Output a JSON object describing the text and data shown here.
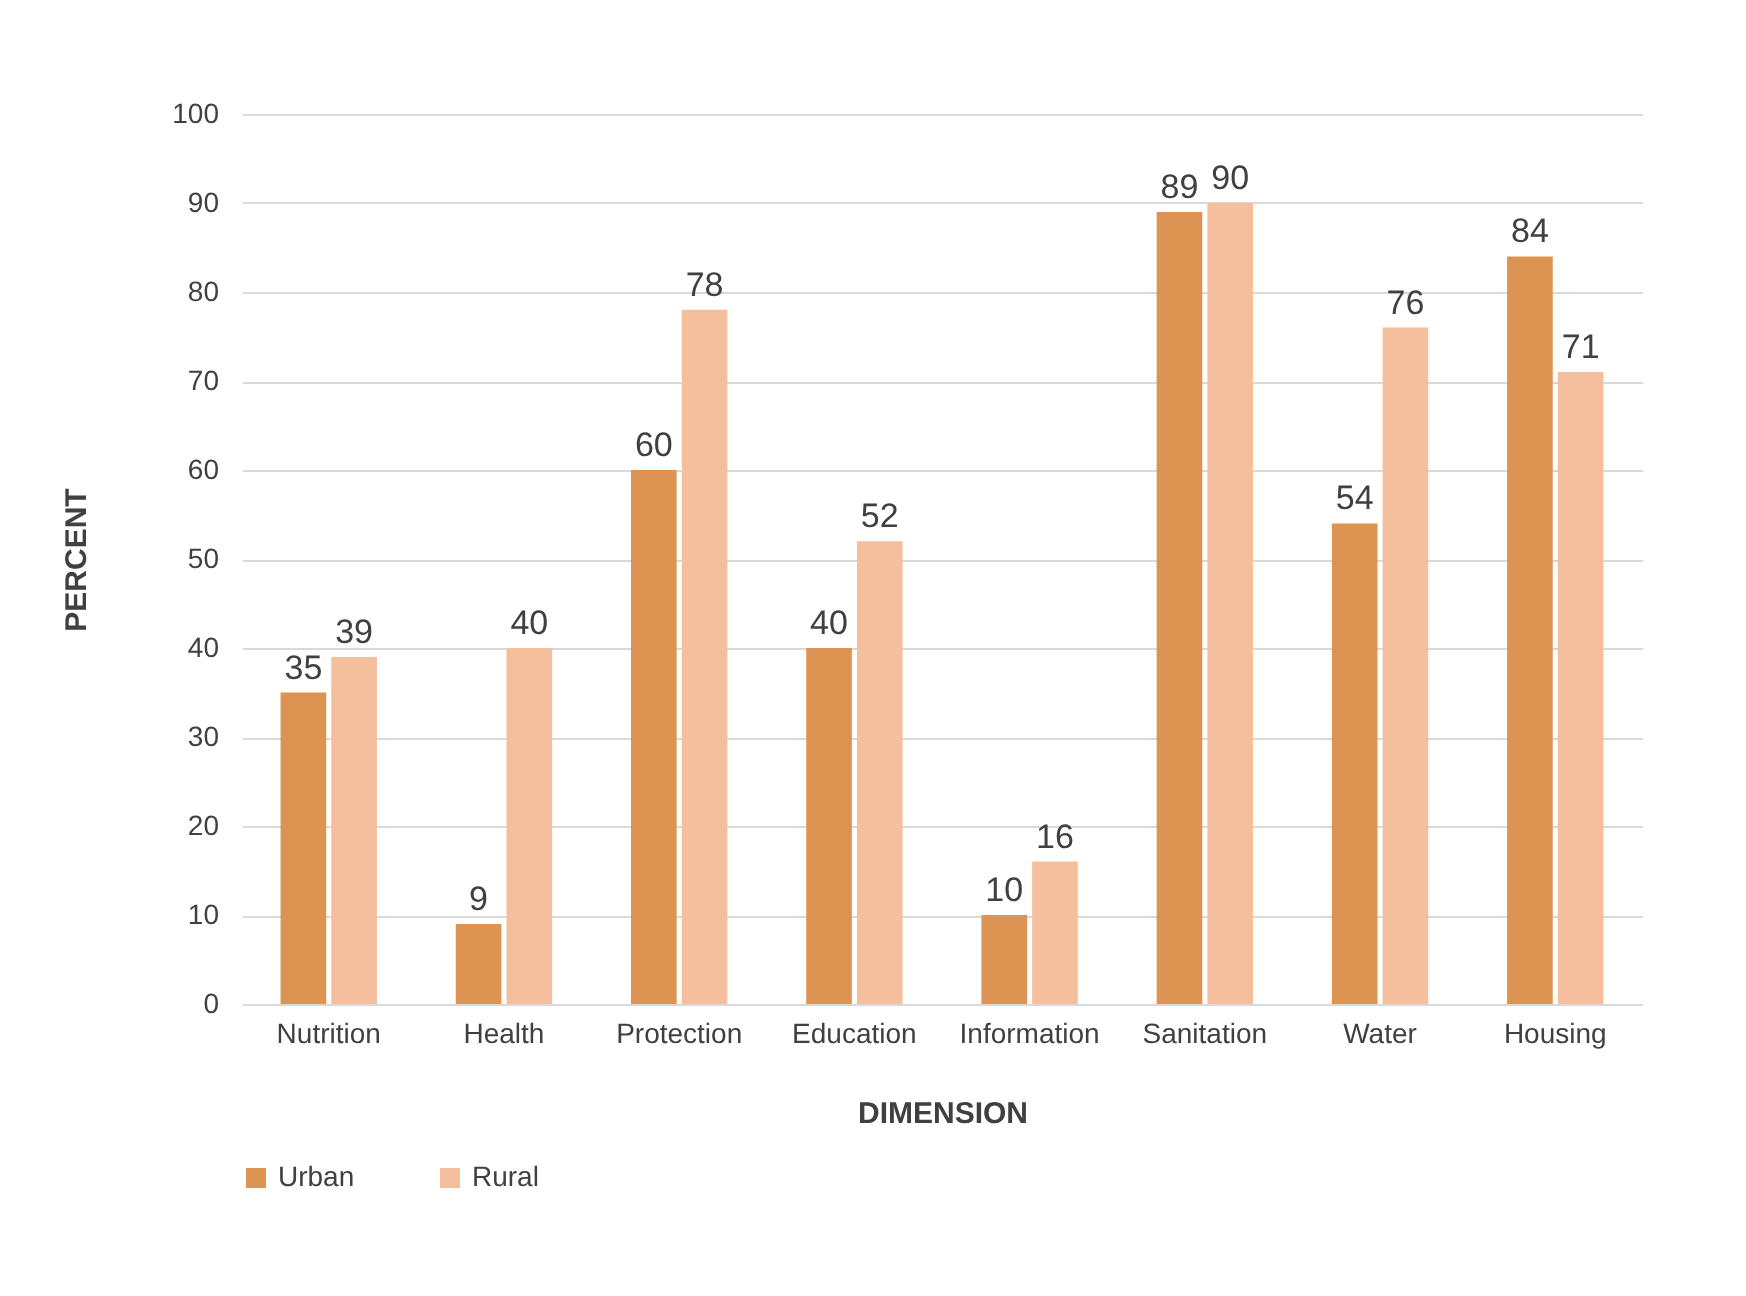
{
  "chart_data": {
    "type": "bar",
    "xlabel": "DIMENSION",
    "ylabel": "PERCENT",
    "categories": [
      "Nutrition",
      "Health",
      "Protection",
      "Education",
      "Information",
      "Sanitation",
      "Water",
      "Housing"
    ],
    "series": [
      {
        "name": "Urban",
        "color": "#dd9452",
        "values": [
          35,
          9,
          60,
          40,
          10,
          89,
          54,
          84
        ]
      },
      {
        "name": "Rural",
        "color": "#f5bf9e",
        "values": [
          39,
          40,
          78,
          52,
          16,
          90,
          76,
          71
        ]
      }
    ],
    "ylim": [
      0,
      100
    ],
    "yticks": [
      0,
      10,
      20,
      30,
      40,
      50,
      60,
      70,
      80,
      90,
      100
    ],
    "grid": "y",
    "legend": "bottom",
    "data_labels": true
  }
}
